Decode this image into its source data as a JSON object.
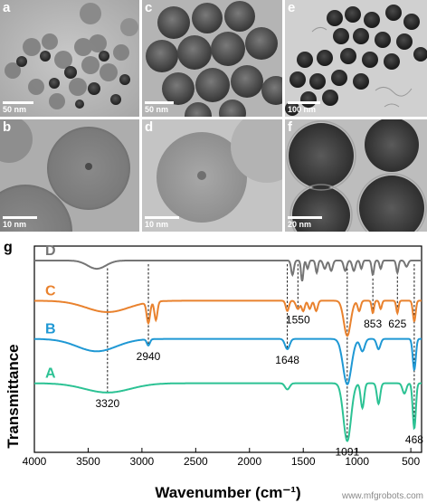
{
  "tem_panels": [
    {
      "letter": "a",
      "scale": "50 nm"
    },
    {
      "letter": "c",
      "scale": "50 nm"
    },
    {
      "letter": "e",
      "scale": "100 nm"
    },
    {
      "letter": "b",
      "scale": "10 nm"
    },
    {
      "letter": "d",
      "scale": "10 nm"
    },
    {
      "letter": "f",
      "scale": "20 nm"
    }
  ],
  "chart_panel_letter": "g",
  "watermark": "www.mfgrobots.com",
  "chart_data": {
    "type": "line",
    "xlabel": "Wavenumber (cm⁻¹)",
    "ylabel": "Transmittance",
    "xlim": [
      4000,
      400
    ],
    "x_reversed": true,
    "x_ticks": [
      4000,
      3500,
      3000,
      2500,
      2000,
      1500,
      1000,
      500
    ],
    "series": [
      {
        "name": "D",
        "color": "#757575",
        "offset": 0.93,
        "bands": [
          [
            3420,
            0.04,
            120
          ],
          [
            1600,
            0.07,
            18
          ],
          [
            1510,
            0.1,
            15
          ],
          [
            1460,
            0.04,
            15
          ],
          [
            1375,
            0.06,
            15
          ],
          [
            1300,
            0.04,
            20
          ],
          [
            1240,
            0.05,
            20
          ],
          [
            1110,
            0.05,
            20
          ],
          [
            1030,
            0.05,
            20
          ],
          [
            960,
            0.04,
            15
          ],
          [
            853,
            0.07,
            15
          ],
          [
            780,
            0.04,
            15
          ],
          [
            625,
            0.06,
            15
          ],
          [
            540,
            0.03,
            20
          ]
        ]
      },
      {
        "name": "C",
        "color": "#e9822e",
        "offset": 0.735,
        "bands": [
          [
            3320,
            0.055,
            280
          ],
          [
            2940,
            0.1,
            22
          ],
          [
            2870,
            0.09,
            20
          ],
          [
            1648,
            0.05,
            20
          ],
          [
            1550,
            0.04,
            25
          ],
          [
            1500,
            0.05,
            20
          ],
          [
            1440,
            0.04,
            20
          ],
          [
            1380,
            0.05,
            20
          ],
          [
            1091,
            0.17,
            45
          ],
          [
            980,
            0.05,
            20
          ],
          [
            853,
            0.06,
            15
          ],
          [
            780,
            0.04,
            15
          ],
          [
            625,
            0.06,
            15
          ],
          [
            468,
            0.1,
            18
          ]
        ]
      },
      {
        "name": "B",
        "color": "#1f98d4",
        "offset": 0.55,
        "bands": [
          [
            3420,
            0.06,
            260
          ],
          [
            2940,
            0.03,
            20
          ],
          [
            1648,
            0.05,
            30
          ],
          [
            1091,
            0.22,
            55
          ],
          [
            950,
            0.06,
            30
          ],
          [
            800,
            0.05,
            25
          ],
          [
            468,
            0.15,
            20
          ]
        ]
      },
      {
        "name": "A",
        "color": "#2cc294",
        "offset": 0.335,
        "bands": [
          [
            3320,
            0.045,
            300
          ],
          [
            1648,
            0.03,
            30
          ],
          [
            1091,
            0.28,
            50
          ],
          [
            950,
            0.12,
            22
          ],
          [
            800,
            0.1,
            22
          ],
          [
            560,
            0.05,
            25
          ],
          [
            468,
            0.22,
            20
          ]
        ]
      }
    ],
    "annotations": [
      {
        "label": "3320",
        "x": 3320,
        "series": 3
      },
      {
        "label": "2940",
        "x": 2940,
        "series": 2
      },
      {
        "label": "1648",
        "x": 1648,
        "series": 2
      },
      {
        "label": "1550",
        "x": 1550,
        "series": 1
      },
      {
        "label": "1091",
        "x": 1091,
        "series": 3
      },
      {
        "label": "853",
        "x": 853,
        "series": 1
      },
      {
        "label": "625",
        "x": 625,
        "series": 1
      },
      {
        "label": "468",
        "x": 468,
        "series": 3
      }
    ],
    "reference_lines": [
      3320,
      2940,
      1648,
      1550,
      1091,
      853,
      625,
      468
    ]
  }
}
